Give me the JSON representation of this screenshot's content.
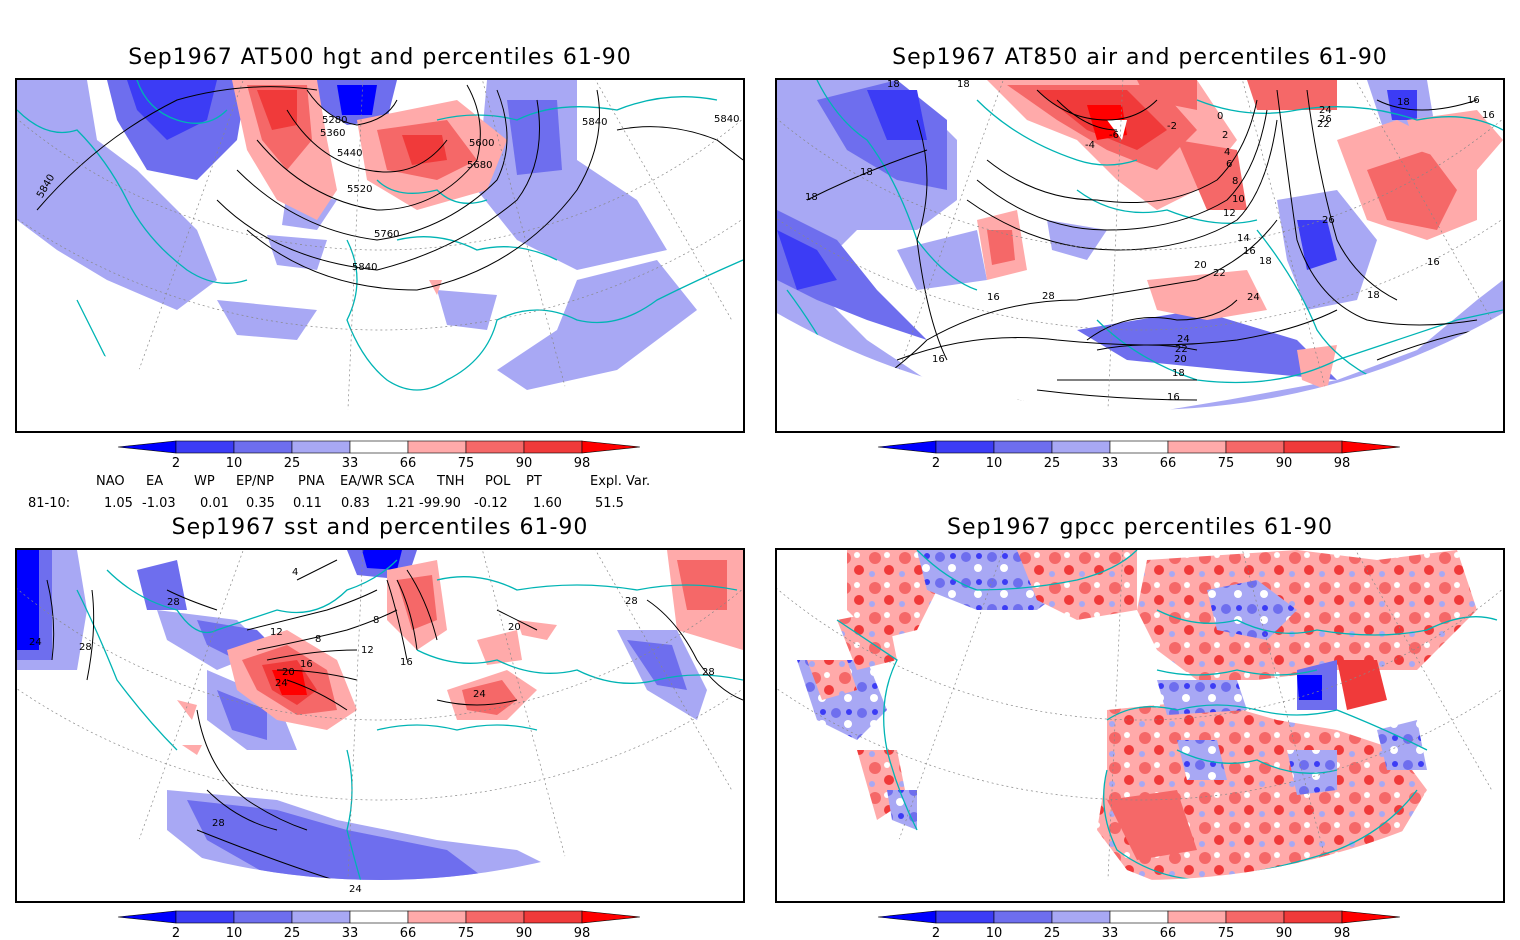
{
  "panels": [
    {
      "id": "hgt",
      "title": "Sep1967 AT500 hgt and percentiles 61-90",
      "contour_labels": [
        "5840",
        "5280",
        "5360",
        "5440",
        "5520",
        "5600",
        "5680",
        "5760",
        "5840",
        "5840",
        "5840"
      ]
    },
    {
      "id": "air",
      "title": "Sep1967 AT850 air and percentiles 61-90",
      "contour_labels": [
        "18",
        "18",
        "-2",
        "-4",
        "-6",
        "0",
        "2",
        "4",
        "6",
        "8",
        "10",
        "12",
        "14",
        "16",
        "18",
        "20",
        "22",
        "24",
        "26",
        "28",
        "16",
        "16",
        "18",
        "16",
        "16",
        "18",
        "18",
        "18",
        "24",
        "22",
        "20",
        "18",
        "16",
        "16",
        "22",
        "24",
        "26",
        "16"
      ]
    },
    {
      "id": "sst",
      "title": "Sep1967 sst and percentiles 61-90",
      "contour_labels": [
        "28",
        "24",
        "28",
        "12",
        "8",
        "16",
        "20",
        "24",
        "4",
        "8",
        "12",
        "16",
        "20",
        "24",
        "28",
        "28",
        "28",
        "24"
      ]
    },
    {
      "id": "gpcc",
      "title": "Sep1967 gpcc percentiles 61-90",
      "contour_labels": []
    }
  ],
  "colorbar": {
    "labels": [
      "2",
      "10",
      "25",
      "33",
      "66",
      "75",
      "90",
      "98"
    ],
    "colors": {
      "b1": "#0000ff",
      "b2": "#3c3cf5",
      "b3": "#6e6eee",
      "b4": "#a8a8f4",
      "r1": "#ffaaaa",
      "r2": "#f56868",
      "r3": "#f03a3a",
      "r4": "#ff0000"
    }
  },
  "indices": {
    "headers": [
      "NAO",
      "EA",
      "WP",
      "EP/NP",
      "PNA",
      "EA/WR",
      "SCA",
      "TNH",
      "POL",
      "PT",
      "Expl. Var."
    ],
    "row_label": "81-10:",
    "values": [
      "1.05",
      "-1.03",
      "0.01",
      "0.35",
      "0.11",
      "0.83",
      "1.21",
      "-99.90",
      "-0.12",
      "1.60",
      "51.5"
    ]
  },
  "colors": {
    "coast": "#00b4b4",
    "grid": "#888888",
    "contour": "#000000"
  }
}
